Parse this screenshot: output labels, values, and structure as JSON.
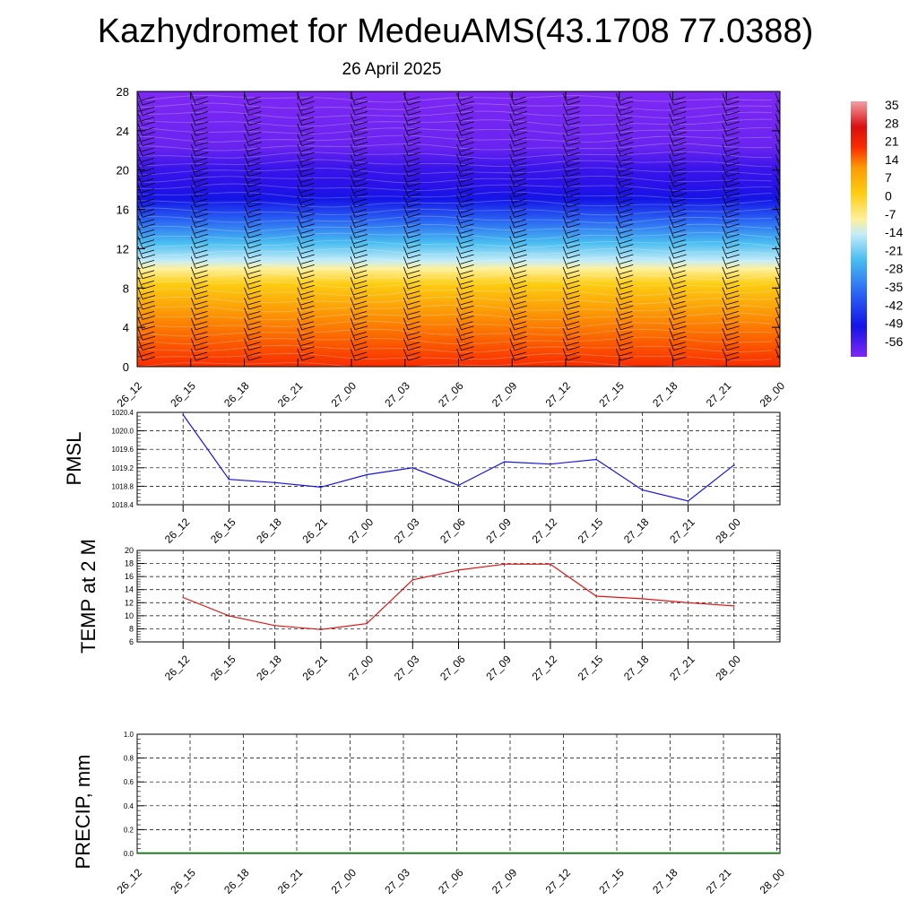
{
  "title": "Kazhydromet for MedeuAMS(43.1708 77.0388)",
  "subtitle": "26 April 2025",
  "time_labels": [
    "26_12",
    "26_15",
    "26_18",
    "26_21",
    "27_00",
    "27_03",
    "27_06",
    "27_09",
    "27_12",
    "27_15",
    "27_18",
    "27_21",
    "28_00"
  ],
  "chart_data": [
    {
      "type": "heatmap",
      "name": "height-time cross-section",
      "x": [
        "26_12",
        "26_15",
        "26_18",
        "26_21",
        "27_00",
        "27_03",
        "27_06",
        "27_09",
        "27_12",
        "27_15",
        "27_18",
        "27_21",
        "28_00"
      ],
      "y_ticks": [
        0,
        4,
        8,
        12,
        16,
        20,
        24,
        28
      ],
      "ylim": [
        0,
        28
      ],
      "colorbar_labels": [
        "35",
        "28",
        "21",
        "14",
        "7",
        "0",
        "-7",
        "-14",
        "-21",
        "-28",
        "-35",
        "-42",
        "-49",
        "-56"
      ],
      "colorbar_range": [
        -60,
        38
      ],
      "wind_barbs": true
    },
    {
      "type": "line",
      "ylabel": "PMSL",
      "x": [
        "26_12",
        "26_15",
        "26_18",
        "26_21",
        "27_00",
        "27_03",
        "27_06",
        "27_09",
        "27_12",
        "27_15",
        "27_18",
        "27_21",
        "28_00"
      ],
      "values": [
        1020.35,
        1018.95,
        1018.88,
        1018.78,
        1019.05,
        1019.2,
        1018.82,
        1019.33,
        1019.28,
        1019.38,
        1018.72,
        1018.48,
        1019.26
      ],
      "ylim": [
        1018.4,
        1020.4
      ],
      "y_ticks": [
        "1018.4",
        "1018.8",
        "1019.2",
        "1019.6",
        "1020.0",
        "1020.4"
      ],
      "line_color": "#1515e0",
      "grid": true
    },
    {
      "type": "line",
      "ylabel": "TEMP at 2 M",
      "x": [
        "26_12",
        "26_15",
        "26_18",
        "26_21",
        "27_00",
        "27_03",
        "27_06",
        "27_09",
        "27_12",
        "27_15",
        "27_18",
        "27_21",
        "28_00"
      ],
      "values": [
        12.8,
        10.0,
        8.5,
        7.9,
        8.8,
        15.5,
        17.0,
        17.9,
        17.9,
        13.0,
        12.6,
        12.0,
        11.5
      ],
      "ylim": [
        6,
        20
      ],
      "y_ticks": [
        "6",
        "8",
        "10",
        "12",
        "14",
        "16",
        "18",
        "20"
      ],
      "line_color": "#e01515",
      "grid": true
    },
    {
      "type": "line",
      "ylabel": "PRECIP, mm",
      "x": [
        "26_12",
        "26_15",
        "26_18",
        "26_21",
        "27_00",
        "27_03",
        "27_06",
        "27_09",
        "27_12",
        "27_15",
        "27_18",
        "27_21",
        "28_00"
      ],
      "values": [
        0,
        0,
        0,
        0,
        0,
        0,
        0,
        0,
        0,
        0,
        0,
        0,
        0
      ],
      "ylim": [
        0,
        1
      ],
      "y_ticks": [
        "0.0",
        "0.2",
        "0.4",
        "0.6",
        "0.8",
        "1.0"
      ],
      "line_color": "#0a7a0a",
      "grid": true
    }
  ]
}
